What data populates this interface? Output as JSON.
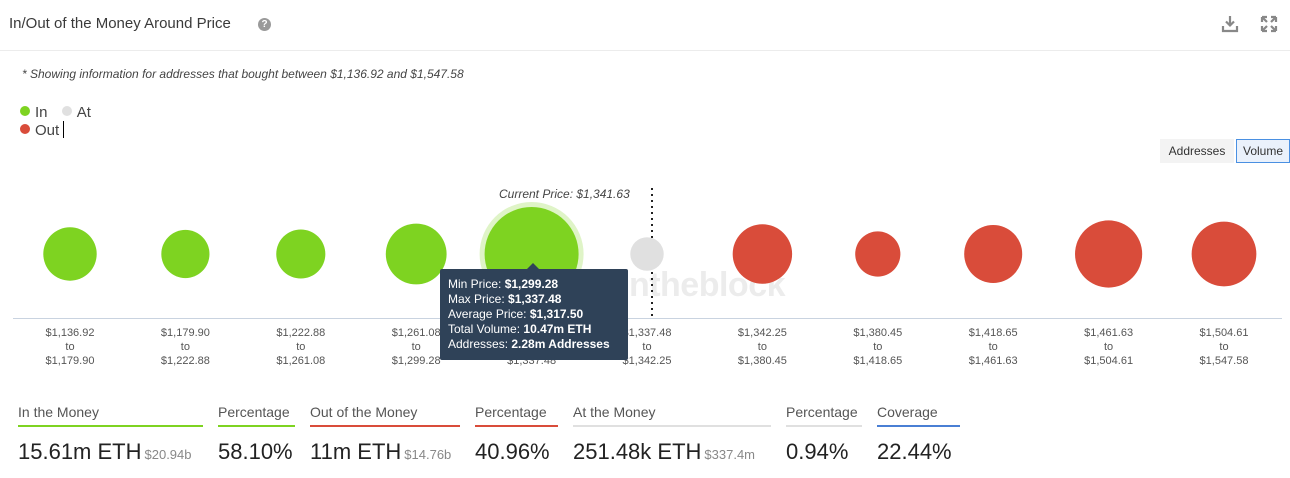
{
  "header": {
    "title": "In/Out of the Money Around Price",
    "help_icon": "?"
  },
  "subtitle": "* Showing information for addresses that bought between $1,136.92 and $1,547.58",
  "legend": [
    {
      "label": "In",
      "color": "#7ed321"
    },
    {
      "label": "At",
      "color": "#e0e0e0"
    },
    {
      "label": "Out",
      "color": "#d94c3a"
    }
  ],
  "toggle": {
    "addresses_label": "Addresses",
    "volume_label": "Volume",
    "selected": "Volume"
  },
  "current_price_label": "Current Price: $1,341.63",
  "watermark": "intheblock",
  "tooltip": {
    "min_label": "Min Price:",
    "min_value": "$1,299.28",
    "max_label": "Max Price:",
    "max_value": "$1,337.48",
    "avg_label": "Average Price:",
    "avg_value": "$1,317.50",
    "vol_label": "Total Volume:",
    "vol_value": "10.47m ETH",
    "addr_label": "Addresses:",
    "addr_value": "2.28m Addresses"
  },
  "chart_data": {
    "type": "scatter",
    "title": "In/Out of the Money Around Price",
    "current_price": 1341.63,
    "ranges": [
      {
        "from": "$1,136.92",
        "to": "$1,179.90",
        "status": "In",
        "relative_volume": 0.23
      },
      {
        "from": "$1,179.90",
        "to": "$1,222.88",
        "status": "In",
        "relative_volume": 0.17
      },
      {
        "from": "$1,222.88",
        "to": "$1,261.08",
        "status": "In",
        "relative_volume": 0.18
      },
      {
        "from": "$1,261.08",
        "to": "$1,299.28",
        "status": "In",
        "relative_volume": 0.33
      },
      {
        "from": "$1,299.28",
        "to": "$1,337.48",
        "status": "In",
        "relative_volume": 1.0
      },
      {
        "from": "$1,337.48",
        "to": "$1,342.25",
        "status": "At",
        "relative_volume": 0.05
      },
      {
        "from": "$1,342.25",
        "to": "$1,380.45",
        "status": "Out",
        "relative_volume": 0.31
      },
      {
        "from": "$1,380.45",
        "to": "$1,418.65",
        "status": "Out",
        "relative_volume": 0.14
      },
      {
        "from": "$1,418.65",
        "to": "$1,461.63",
        "status": "Out",
        "relative_volume": 0.29
      },
      {
        "from": "$1,461.63",
        "to": "$1,504.61",
        "status": "Out",
        "relative_volume": 0.43
      },
      {
        "from": "$1,504.61",
        "to": "$1,547.58",
        "status": "Out",
        "relative_volume": 0.39
      }
    ],
    "range_connector": "to",
    "hovered_index": 4,
    "colors": {
      "In": "#7ed321",
      "At": "#e0e0e0",
      "Out": "#d94c3a"
    }
  },
  "stats": [
    {
      "label": "In the Money",
      "value": "15.61m ETH",
      "sub": "$20.94b",
      "color": "#7ed321"
    },
    {
      "label": "Percentage",
      "value": "58.10%",
      "sub": "",
      "color": "#7ed321"
    },
    {
      "label": "Out of the Money",
      "value": "11m ETH",
      "sub": "$14.76b",
      "color": "#d94c3a"
    },
    {
      "label": "Percentage",
      "value": "40.96%",
      "sub": "",
      "color": "#d94c3a"
    },
    {
      "label": "At the Money",
      "value": "251.48k ETH",
      "sub": "$337.4m",
      "color": "#e0e0e0"
    },
    {
      "label": "Percentage",
      "value": "0.94%",
      "sub": "",
      "color": "#e0e0e0"
    },
    {
      "label": "Coverage",
      "value": "22.44%",
      "sub": "",
      "color": "#4a7fd4"
    }
  ]
}
